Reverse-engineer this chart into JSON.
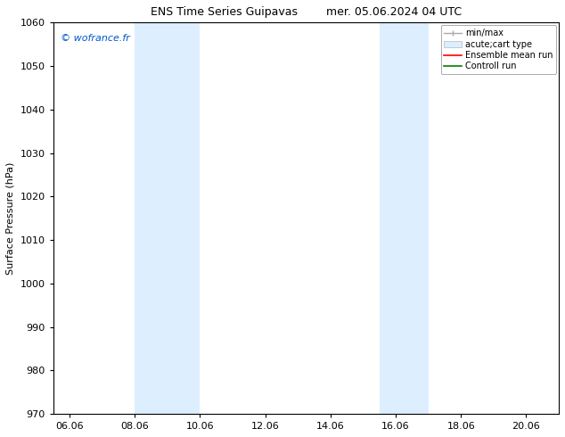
{
  "title": "ENS Time Series Guipavas        mer. 05.06.2024 04 UTC",
  "ylabel": "Surface Pressure (hPa)",
  "ylim": [
    970,
    1060
  ],
  "yticks": [
    970,
    980,
    990,
    1000,
    1010,
    1020,
    1030,
    1040,
    1050,
    1060
  ],
  "xlim_start": 5.5,
  "xlim_end": 21.0,
  "xtick_labels": [
    "06.06",
    "08.06",
    "10.06",
    "12.06",
    "14.06",
    "16.06",
    "18.06",
    "20.06"
  ],
  "xtick_positions": [
    6.0,
    8.0,
    10.0,
    12.0,
    14.0,
    16.0,
    18.0,
    20.0
  ],
  "shaded_bands": [
    {
      "x_start": 8.0,
      "x_end": 10.0
    },
    {
      "x_start": 15.5,
      "x_end": 17.0
    }
  ],
  "shaded_color": "#ddeeff",
  "watermark_text": "© wofrance.fr",
  "watermark_color": "#0055cc",
  "bg_color": "#ffffff",
  "title_fontsize": 9,
  "axis_fontsize": 8,
  "tick_fontsize": 8,
  "legend_fontsize": 7
}
